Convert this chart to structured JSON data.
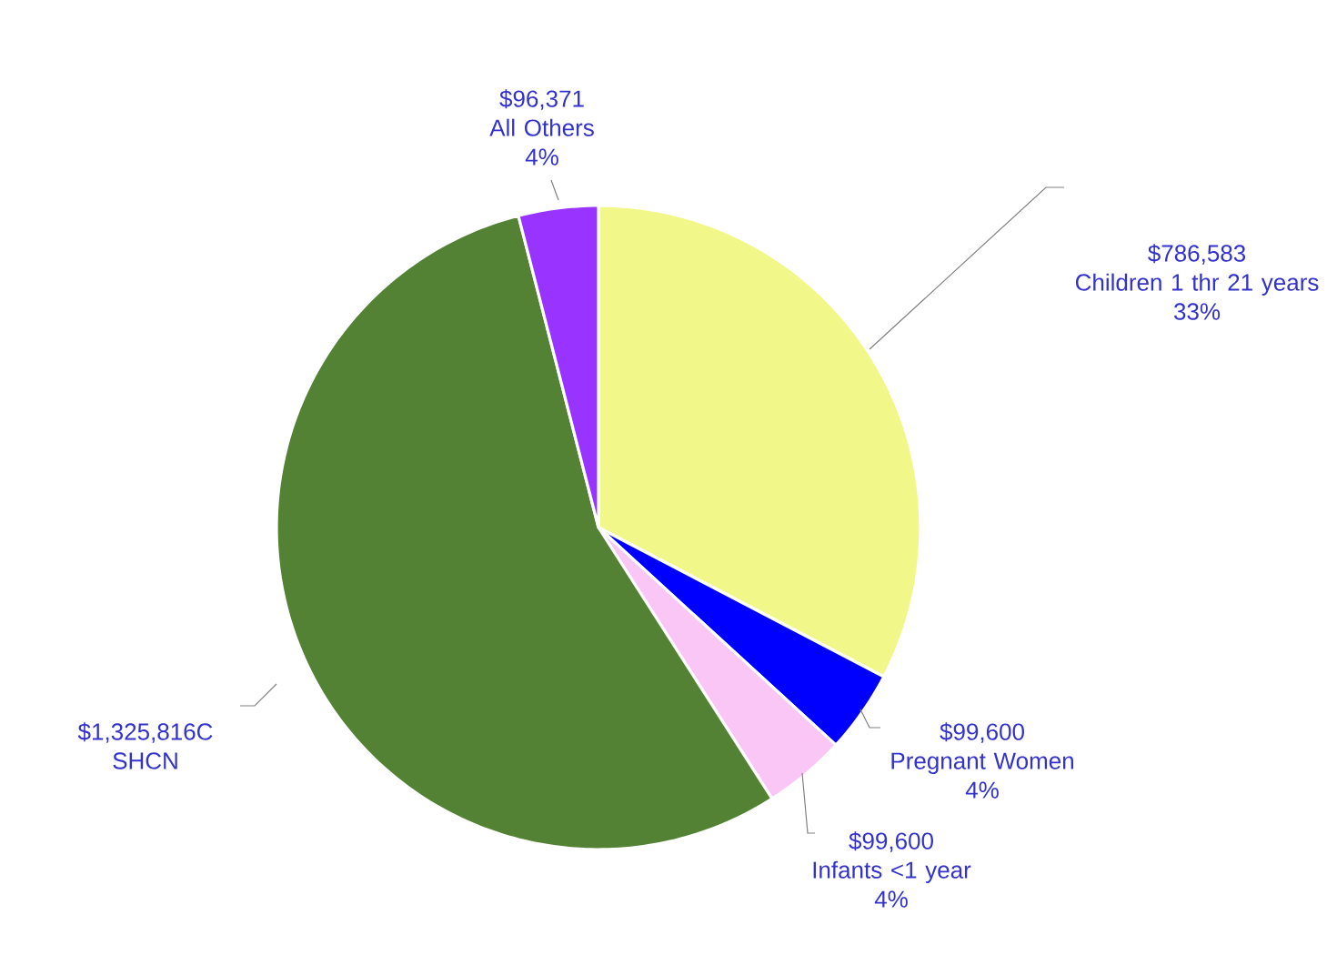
{
  "chart_data": {
    "type": "pie",
    "categories": [
      "Children 1 thr 21 years",
      "Pregnant Women",
      "Infants <1 year",
      "SHCN",
      "All Others"
    ],
    "values": [
      786583,
      99600,
      99600,
      1325816,
      96371
    ],
    "value_labels": [
      "$786,583",
      "$99,600",
      "$99,600",
      "$1,325,816C",
      "$96,371"
    ],
    "colors": [
      "#f2f78a",
      "#0000ff",
      "#f9c6f5",
      "#548235",
      "#9933ff"
    ],
    "annotations": [
      {
        "text": "33%",
        "x": "Children 1 thr 21 years"
      },
      {
        "text": "4%",
        "x": "Pregnant Women"
      },
      {
        "text": "4%",
        "x": "Infants <1 year"
      },
      {
        "text": "4%",
        "x": "All Others"
      }
    ]
  }
}
